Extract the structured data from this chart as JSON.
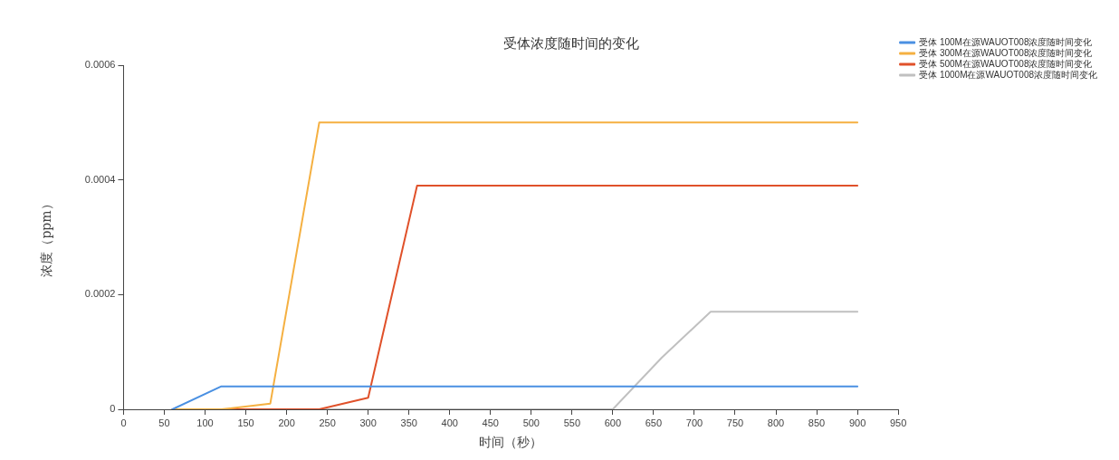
{
  "chart_data": {
    "type": "line",
    "title": "受体浓度随时间的变化",
    "xlabel": "时间（秒）",
    "ylabel": "浓度（ppm）",
    "x": [
      60,
      120,
      180,
      240,
      300,
      360,
      420,
      480,
      540,
      600,
      660,
      720,
      780,
      840,
      900
    ],
    "series": [
      {
        "name": "受体 100M在源WAUOT008浓度随时间变化",
        "color": "#4a90e2",
        "values": [
          0,
          4e-05,
          4e-05,
          4e-05,
          4e-05,
          4e-05,
          4e-05,
          4e-05,
          4e-05,
          4e-05,
          4e-05,
          4e-05,
          4e-05,
          4e-05,
          4e-05
        ]
      },
      {
        "name": "受体 300M在源WAUOT008浓度随时间变化",
        "color": "#f5b041",
        "values": [
          0,
          0,
          1e-05,
          0.0005,
          0.0005,
          0.0005,
          0.0005,
          0.0005,
          0.0005,
          0.0005,
          0.0005,
          0.0005,
          0.0005,
          0.0005,
          0.0005
        ]
      },
      {
        "name": "受体 500M在源WAUOT008浓度随时间变化",
        "color": "#e0512a",
        "values": [
          0,
          0,
          0,
          0,
          2e-05,
          0.00039,
          0.00039,
          0.00039,
          0.00039,
          0.00039,
          0.00039,
          0.00039,
          0.00039,
          0.00039,
          0.00039
        ]
      },
      {
        "name": "受体 1000M在源WAUOT008浓度随时间变化",
        "color": "#c0c0c0",
        "values": [
          0,
          0,
          0,
          0,
          0,
          0,
          0,
          0,
          0,
          0,
          9e-05,
          0.00017,
          0.00017,
          0.00017,
          0.00017
        ]
      }
    ],
    "xlim": [
      0,
      950
    ],
    "xticks": [
      0,
      50,
      100,
      150,
      200,
      250,
      300,
      350,
      400,
      450,
      500,
      550,
      600,
      650,
      700,
      750,
      800,
      850,
      900,
      950
    ],
    "ylim": [
      0,
      0.0006
    ],
    "yticks": [
      0,
      0.0002,
      0.0004,
      0.0006
    ],
    "grid": false,
    "legend": "top right",
    "marker": "none",
    "line_style": "solid"
  }
}
